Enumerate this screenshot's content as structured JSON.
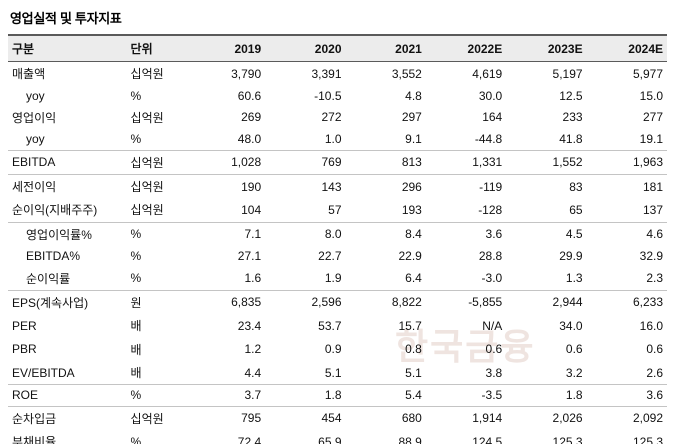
{
  "title": "영업실적 및 투자지표",
  "watermark": "한국금융",
  "table": {
    "headers": [
      "구분",
      "단위",
      "2019",
      "2020",
      "2021",
      "2022E",
      "2023E",
      "2024E"
    ],
    "rows": [
      {
        "label": "매출액",
        "unit": "십억원",
        "indent": false,
        "sep": false,
        "values": [
          "3,790",
          "3,391",
          "3,552",
          "4,619",
          "5,197",
          "5,977"
        ]
      },
      {
        "label": "yoy",
        "unit": "%",
        "indent": true,
        "sep": false,
        "values": [
          "60.6",
          "-10.5",
          "4.8",
          "30.0",
          "12.5",
          "15.0"
        ]
      },
      {
        "label": "영업이익",
        "unit": "십억원",
        "indent": false,
        "sep": false,
        "values": [
          "269",
          "272",
          "297",
          "164",
          "233",
          "277"
        ]
      },
      {
        "label": "yoy",
        "unit": "%",
        "indent": true,
        "sep": false,
        "values": [
          "48.0",
          "1.0",
          "9.1",
          "-44.8",
          "41.8",
          "19.1"
        ]
      },
      {
        "label": "EBITDA",
        "unit": "십억원",
        "indent": false,
        "sep": true,
        "values": [
          "1,028",
          "769",
          "813",
          "1,331",
          "1,552",
          "1,963"
        ]
      },
      {
        "label": "세전이익",
        "unit": "십억원",
        "indent": false,
        "sep": true,
        "values": [
          "190",
          "143",
          "296",
          "-119",
          "83",
          "181"
        ]
      },
      {
        "label": "순이익(지배주주)",
        "unit": "십억원",
        "indent": false,
        "sep": false,
        "values": [
          "104",
          "57",
          "193",
          "-128",
          "65",
          "137"
        ]
      },
      {
        "label": "영업이익률%",
        "unit": "%",
        "indent": true,
        "sep": true,
        "values": [
          "7.1",
          "8.0",
          "8.4",
          "3.6",
          "4.5",
          "4.6"
        ]
      },
      {
        "label": "EBITDA%",
        "unit": "%",
        "indent": true,
        "sep": false,
        "values": [
          "27.1",
          "22.7",
          "22.9",
          "28.8",
          "29.9",
          "32.9"
        ]
      },
      {
        "label": "순이익률",
        "unit": "%",
        "indent": true,
        "sep": false,
        "values": [
          "1.6",
          "1.9",
          "6.4",
          "-3.0",
          "1.3",
          "2.3"
        ]
      },
      {
        "label": "EPS(계속사업)",
        "unit": "원",
        "indent": false,
        "sep": true,
        "values": [
          "6,835",
          "2,596",
          "8,822",
          "-5,855",
          "2,944",
          "6,233"
        ]
      },
      {
        "label": "PER",
        "unit": "배",
        "indent": false,
        "sep": false,
        "values": [
          "23.4",
          "53.7",
          "15.7",
          "N/A",
          "34.0",
          "16.0"
        ]
      },
      {
        "label": "PBR",
        "unit": "배",
        "indent": false,
        "sep": false,
        "values": [
          "1.2",
          "0.9",
          "0.8",
          "0.6",
          "0.6",
          "0.6"
        ]
      },
      {
        "label": "EV/EBITDA",
        "unit": "배",
        "indent": false,
        "sep": false,
        "values": [
          "4.4",
          "5.1",
          "5.1",
          "3.8",
          "3.2",
          "2.6"
        ]
      },
      {
        "label": "ROE",
        "unit": "%",
        "indent": false,
        "sep": true,
        "values": [
          "3.7",
          "1.8",
          "5.4",
          "-3.5",
          "1.8",
          "3.6"
        ]
      },
      {
        "label": "순차입금",
        "unit": "십억원",
        "indent": false,
        "sep": true,
        "values": [
          "795",
          "454",
          "680",
          "1,914",
          "2,026",
          "2,092"
        ]
      },
      {
        "label": "부채비율",
        "unit": "%",
        "indent": false,
        "sep": false,
        "values": [
          "72.4",
          "65.9",
          "88.9",
          "124.5",
          "125.3",
          "125.3"
        ]
      }
    ]
  }
}
